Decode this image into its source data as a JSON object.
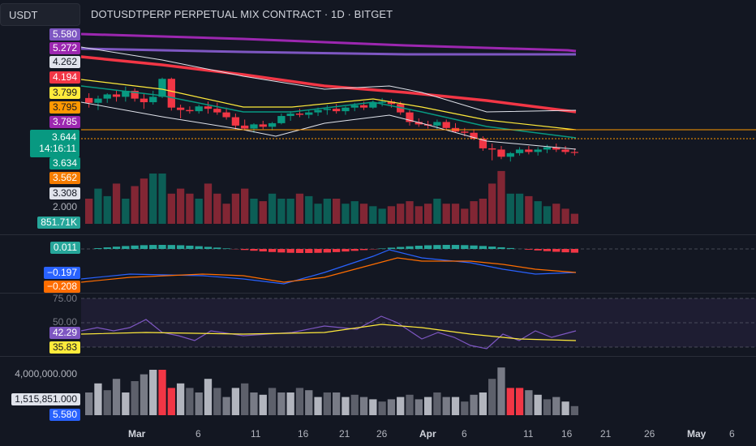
{
  "header": {
    "currency": "USDT",
    "title": "DOTUSDTPERP PERPETUAL MIX CONTRACT · 1D · BITGET"
  },
  "price_tags": [
    {
      "text": "5.580",
      "bg": "#7e57c2",
      "fg": "#ffffff"
    },
    {
      "text": "5.272",
      "bg": "#9c27b0",
      "fg": "#ffffff"
    },
    {
      "text": "4.262",
      "bg": "#e0e3eb",
      "fg": "#131722"
    },
    {
      "text": "4.194",
      "bg": "#f23645",
      "fg": "#ffffff"
    },
    {
      "text": "3.799",
      "bg": "#ffeb3b",
      "fg": "#131722"
    },
    {
      "text": "3.795",
      "bg": "#ff9800",
      "fg": "#131722"
    },
    {
      "text": "3.785",
      "bg": "#9c27b0",
      "fg": "#ffffff"
    },
    {
      "text": "3.634",
      "bg": "#089981",
      "fg": "#ffffff"
    },
    {
      "text": "3.562",
      "bg": "#f57c00",
      "fg": "#ffffff"
    },
    {
      "text": "3.308",
      "bg": "#e0e3eb",
      "fg": "#131722"
    },
    {
      "text": "2.000",
      "bg": "transparent",
      "fg": "#b2b5be"
    },
    {
      "text": "851.71K",
      "bg": "#26a69a",
      "fg": "#ffffff"
    }
  ],
  "last_price": {
    "price": "3.644",
    "countdown": "14:16:11"
  },
  "macd_tags": [
    {
      "text": "0.011",
      "bg": "#26a69a",
      "fg": "#ffffff"
    },
    {
      "text": "−0.197",
      "bg": "#2962ff",
      "fg": "#ffffff"
    },
    {
      "text": "−0.208",
      "bg": "#ff6d00",
      "fg": "#ffffff"
    }
  ],
  "rsi_tags": [
    {
      "text": "75.00",
      "bg": "transparent",
      "fg": "#787b86"
    },
    {
      "text": "50.00",
      "bg": "transparent",
      "fg": "#787b86"
    },
    {
      "text": "42.29",
      "bg": "#7e57c2",
      "fg": "#ffffff"
    },
    {
      "text": "35.83",
      "bg": "#ffeb3b",
      "fg": "#131722"
    }
  ],
  "vol_tags": [
    {
      "text": "4,000,000.000",
      "bg": "transparent",
      "fg": "#b2b5be"
    },
    {
      "text": "1,515,851.000",
      "bg": "#e0e3eb",
      "fg": "#131722"
    },
    {
      "text": "5.580",
      "bg": "#2962ff",
      "fg": "#ffffff"
    }
  ],
  "x_axis": [
    "Mar",
    "6",
    "11",
    "16",
    "21",
    "26",
    "Apr",
    "6",
    "11",
    "16",
    "21",
    "26",
    "May",
    "6"
  ],
  "chart_data": {
    "type": "candlestick",
    "title": "DOTUSDTPERP PERPETUAL MIX CONTRACT · 1D · BITGET",
    "candles": [
      {
        "o": 4.56,
        "h": 4.64,
        "l": 4.4,
        "c": 4.48
      },
      {
        "o": 4.48,
        "h": 4.6,
        "l": 4.36,
        "c": 4.55
      },
      {
        "o": 4.55,
        "h": 4.64,
        "l": 4.48,
        "c": 4.62
      },
      {
        "o": 4.62,
        "h": 4.7,
        "l": 4.5,
        "c": 4.58
      },
      {
        "o": 4.58,
        "h": 4.75,
        "l": 4.5,
        "c": 4.68
      },
      {
        "o": 4.68,
        "h": 4.72,
        "l": 4.5,
        "c": 4.55
      },
      {
        "o": 4.55,
        "h": 4.64,
        "l": 4.38,
        "c": 4.49
      },
      {
        "o": 4.49,
        "h": 4.68,
        "l": 4.45,
        "c": 4.58
      },
      {
        "o": 4.58,
        "h": 4.9,
        "l": 4.56,
        "c": 4.88
      },
      {
        "o": 4.88,
        "h": 4.9,
        "l": 4.35,
        "c": 4.4
      },
      {
        "o": 4.4,
        "h": 4.45,
        "l": 4.22,
        "c": 4.36
      },
      {
        "o": 4.36,
        "h": 4.42,
        "l": 4.3,
        "c": 4.34
      },
      {
        "o": 4.34,
        "h": 4.45,
        "l": 4.3,
        "c": 4.42
      },
      {
        "o": 4.42,
        "h": 4.5,
        "l": 4.3,
        "c": 4.38
      },
      {
        "o": 4.38,
        "h": 4.48,
        "l": 4.28,
        "c": 4.32
      },
      {
        "o": 4.32,
        "h": 4.4,
        "l": 4.2,
        "c": 4.24
      },
      {
        "o": 4.24,
        "h": 4.3,
        "l": 4.04,
        "c": 4.1
      },
      {
        "o": 4.1,
        "h": 4.2,
        "l": 4.02,
        "c": 4.05
      },
      {
        "o": 4.05,
        "h": 4.14,
        "l": 3.98,
        "c": 4.12
      },
      {
        "o": 4.12,
        "h": 4.18,
        "l": 4.04,
        "c": 4.08
      },
      {
        "o": 4.08,
        "h": 4.16,
        "l": 4.02,
        "c": 4.14
      },
      {
        "o": 4.14,
        "h": 4.3,
        "l": 4.12,
        "c": 4.26
      },
      {
        "o": 4.26,
        "h": 4.34,
        "l": 4.18,
        "c": 4.3
      },
      {
        "o": 4.3,
        "h": 4.38,
        "l": 4.24,
        "c": 4.28
      },
      {
        "o": 4.28,
        "h": 4.36,
        "l": 4.22,
        "c": 4.32
      },
      {
        "o": 4.32,
        "h": 4.4,
        "l": 4.26,
        "c": 4.36
      },
      {
        "o": 4.36,
        "h": 4.44,
        "l": 4.28,
        "c": 4.38
      },
      {
        "o": 4.38,
        "h": 4.46,
        "l": 4.3,
        "c": 4.34
      },
      {
        "o": 4.34,
        "h": 4.42,
        "l": 4.28,
        "c": 4.4
      },
      {
        "o": 4.4,
        "h": 4.48,
        "l": 4.34,
        "c": 4.44
      },
      {
        "o": 4.44,
        "h": 4.5,
        "l": 4.36,
        "c": 4.4
      },
      {
        "o": 4.4,
        "h": 4.52,
        "l": 4.38,
        "c": 4.48
      },
      {
        "o": 4.48,
        "h": 4.56,
        "l": 4.42,
        "c": 4.5
      },
      {
        "o": 4.5,
        "h": 4.54,
        "l": 4.4,
        "c": 4.46
      },
      {
        "o": 4.46,
        "h": 4.5,
        "l": 4.28,
        "c": 4.32
      },
      {
        "o": 4.32,
        "h": 4.36,
        "l": 4.1,
        "c": 4.16
      },
      {
        "o": 4.16,
        "h": 4.22,
        "l": 4.08,
        "c": 4.12
      },
      {
        "o": 4.12,
        "h": 4.18,
        "l": 4.05,
        "c": 4.1
      },
      {
        "o": 4.1,
        "h": 4.2,
        "l": 4.04,
        "c": 4.16
      },
      {
        "o": 4.16,
        "h": 4.2,
        "l": 4.02,
        "c": 4.06
      },
      {
        "o": 4.06,
        "h": 4.14,
        "l": 3.98,
        "c": 4.0
      },
      {
        "o": 4.0,
        "h": 4.06,
        "l": 3.92,
        "c": 3.98
      },
      {
        "o": 3.98,
        "h": 4.04,
        "l": 3.86,
        "c": 3.88
      },
      {
        "o": 3.88,
        "h": 3.92,
        "l": 3.68,
        "c": 3.72
      },
      {
        "o": 3.72,
        "h": 3.8,
        "l": 3.52,
        "c": 3.7
      },
      {
        "o": 3.7,
        "h": 3.76,
        "l": 3.54,
        "c": 3.58
      },
      {
        "o": 3.58,
        "h": 3.66,
        "l": 3.5,
        "c": 3.64
      },
      {
        "o": 3.64,
        "h": 3.74,
        "l": 3.6,
        "c": 3.7
      },
      {
        "o": 3.7,
        "h": 3.76,
        "l": 3.62,
        "c": 3.66
      },
      {
        "o": 3.66,
        "h": 3.74,
        "l": 3.6,
        "c": 3.7
      },
      {
        "o": 3.7,
        "h": 3.78,
        "l": 3.64,
        "c": 3.74
      },
      {
        "o": 3.74,
        "h": 3.8,
        "l": 3.66,
        "c": 3.7
      },
      {
        "o": 3.7,
        "h": 3.76,
        "l": 3.62,
        "c": 3.66
      },
      {
        "o": 3.66,
        "h": 3.72,
        "l": 3.6,
        "c": 3.644
      }
    ],
    "ylim": [
      3.3,
      5.6
    ]
  }
}
